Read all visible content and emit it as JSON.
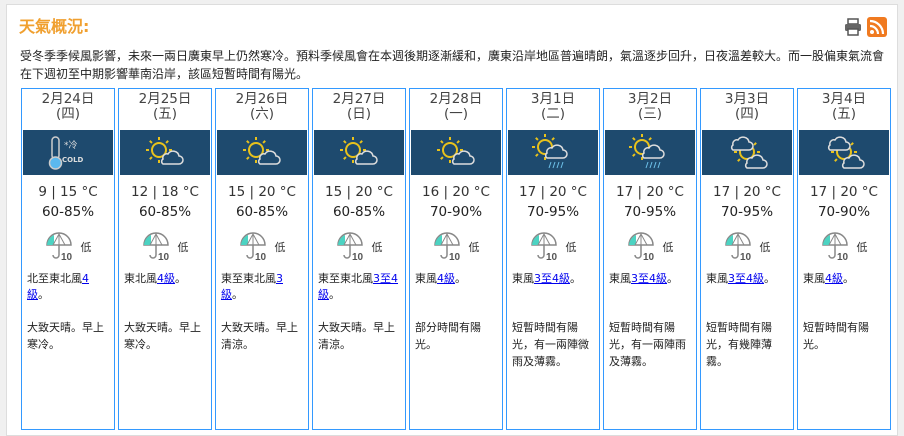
{
  "title": "天氣概況:",
  "icons": {
    "print": "printer-icon",
    "rss": "rss-icon"
  },
  "summary": "受冬季季候風影響，未來一兩日廣東早上仍然寒冷。預料季候風會在本週後期逐漸緩和，廣東沿岸地區普遍晴朗，氣溫逐步回升，日夜溫差較大。而一股偏東氣流會在下週初至中期影響華南沿岸，該區短暫時間有陽光。",
  "colors": {
    "title": "#f0a030",
    "border": "#3399ff",
    "band": "#1e4a6e"
  },
  "days": [
    {
      "date": "2月24日",
      "weekday": "(四)",
      "icon": "cold",
      "temp": "9 | 15 °C",
      "humidity": "60-85%",
      "rain": "低",
      "wind_pre": "北至東北風",
      "wind_link": "4級",
      "wind_post": "。",
      "desc": "大致天晴。早上寒冷。"
    },
    {
      "date": "2月25日",
      "weekday": "(五)",
      "icon": "sun-cloud",
      "temp": "12 | 18 °C",
      "humidity": "60-85%",
      "rain": "低",
      "wind_pre": "東北風",
      "wind_link": "4級",
      "wind_post": "。",
      "desc": "大致天晴。早上寒冷。"
    },
    {
      "date": "2月26日",
      "weekday": "(六)",
      "icon": "sun-cloud",
      "temp": "15 | 20 °C",
      "humidity": "60-85%",
      "rain": "低",
      "wind_pre": "東至東北風",
      "wind_link": "3級",
      "wind_post": "。",
      "desc": "大致天晴。早上清涼。"
    },
    {
      "date": "2月27日",
      "weekday": "(日)",
      "icon": "sun-cloud",
      "temp": "15 | 20 °C",
      "humidity": "60-85%",
      "rain": "低",
      "wind_pre": "東至東北風",
      "wind_link": "3至4級",
      "wind_post": "。",
      "desc": "大致天晴。早上清涼。"
    },
    {
      "date": "2月28日",
      "weekday": "(一)",
      "icon": "sun-cloud",
      "temp": "16 | 20 °C",
      "humidity": "70-90%",
      "rain": "低",
      "wind_pre": "東風",
      "wind_link": "4級",
      "wind_post": "。",
      "desc": "部分時間有陽光。"
    },
    {
      "date": "3月1日",
      "weekday": "(二)",
      "icon": "sun-cloud-rain",
      "temp": "17 | 20 °C",
      "humidity": "70-95%",
      "rain": "低",
      "wind_pre": "東風",
      "wind_link": "3至4級",
      "wind_post": "。",
      "desc": "短暫時間有陽光，有一兩陣微雨及薄霧。"
    },
    {
      "date": "3月2日",
      "weekday": "(三)",
      "icon": "sun-cloud-rain",
      "temp": "17 | 20 °C",
      "humidity": "70-95%",
      "rain": "低",
      "wind_pre": "東風",
      "wind_link": "3至4級",
      "wind_post": "。",
      "desc": "短暫時間有陽光，有一兩陣雨及薄霧。"
    },
    {
      "date": "3月3日",
      "weekday": "(四)",
      "icon": "cloud-sun-cloud",
      "temp": "17 | 20 °C",
      "humidity": "70-95%",
      "rain": "低",
      "wind_pre": "東風",
      "wind_link": "3至4級",
      "wind_post": "。",
      "desc": "短暫時間有陽光，有幾陣薄霧。"
    },
    {
      "date": "3月4日",
      "weekday": "(五)",
      "icon": "cloud-sun-cloud",
      "temp": "17 | 20 °C",
      "humidity": "70-90%",
      "rain": "低",
      "wind_pre": "東風",
      "wind_link": "4級",
      "wind_post": "。",
      "desc": "短暫時間有陽光。"
    }
  ]
}
